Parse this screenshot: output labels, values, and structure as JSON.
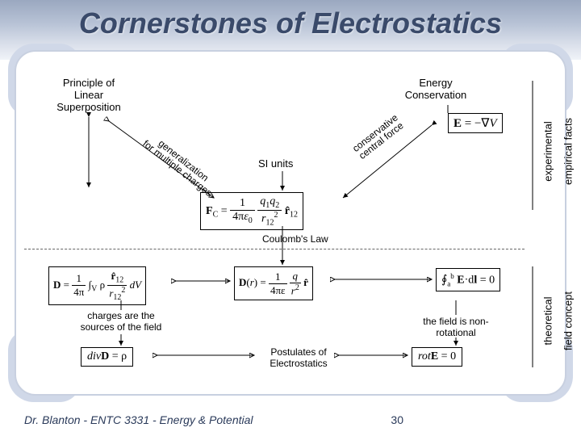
{
  "title": "Cornerstones of Electrostatics",
  "footer": "Dr. Blanton  -  ENTC 3331  - Energy & Potential",
  "page_number": "30",
  "labels": {
    "superposition": "Principle of\nLinear\nSuperposition",
    "energy": "Energy\nConservation",
    "generalization": "generalization\nfor multiple charges",
    "conservative": "conservative\ncentral force",
    "experimental": "experimental",
    "empirical": "empirical facts",
    "theoretical": "theoretical",
    "field_concept": "field concept",
    "si_units": "SI units",
    "coulomb": "Coulomb's Law",
    "charges_sources": "charges are the\nsources of the field",
    "nonrotational": "the field is non-\nrotational",
    "postulates": "Postulates of\nElectrostatics"
  },
  "equations": {
    "e_gradv": "E = −∇V",
    "fc": "F_C = (1 / 4πε₀) · (q₁q₂ / r₁₂²) r̂₁₂",
    "d_integral": "D = (1/4π) ∫_V ρ (r̂₁₂ / r₁₂²) dV",
    "d_field": "D(r) = (1/4πε) (q/r²) r̂",
    "circ_e": "∮ E · dl = 0",
    "div_d": "divD = ρ",
    "rot_e": "rotE = 0"
  },
  "style": {
    "title_color": "#3a4a6a",
    "panel_border": "#c8d0e0",
    "dashed_color": "#666666",
    "arrow_color": "#000000",
    "bg": "#ffffff"
  }
}
